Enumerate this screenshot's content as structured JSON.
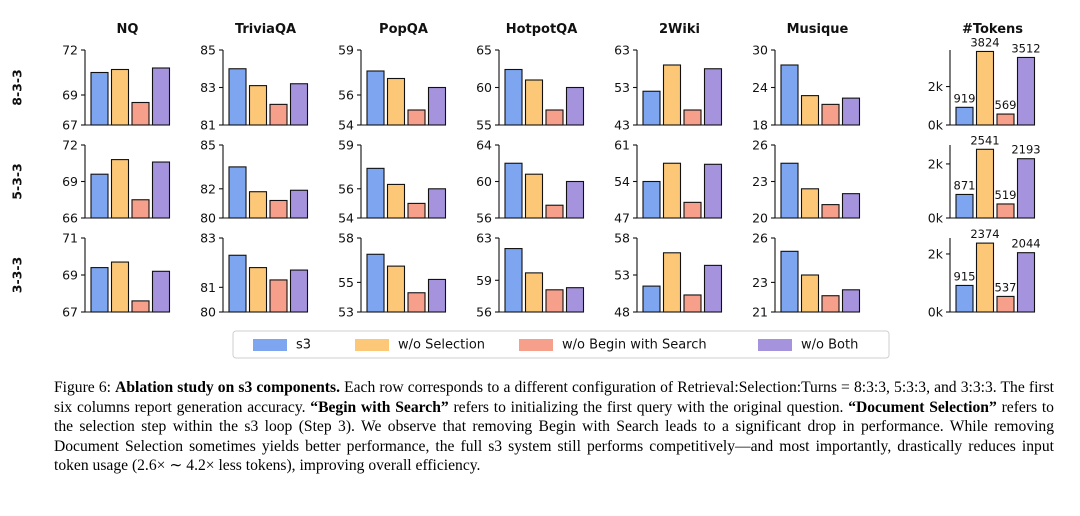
{
  "figure": {
    "columns": [
      "NQ",
      "TriviaQA",
      "PopQA",
      "HotpotQA",
      "2Wiki",
      "Musique",
      "#Tokens"
    ],
    "rows": [
      "8-3-3",
      "5-3-3",
      "3-3-3"
    ]
  },
  "legend": [
    {
      "label": "s3",
      "color": "#7ea6f0"
    },
    {
      "label": "w/o Selection",
      "color": "#fcc878"
    },
    {
      "label": "w/o Begin with Search",
      "color": "#f6a08b"
    },
    {
      "label": "w/o Both",
      "color": "#a693dd"
    }
  ],
  "chart_data": [
    {
      "type": "bar",
      "row": "8-3-3",
      "title": "NQ",
      "ylim": [
        67,
        72
      ],
      "yticks": [
        67,
        69,
        72
      ],
      "values": [
        70.5,
        70.7,
        68.5,
        70.8
      ]
    },
    {
      "type": "bar",
      "row": "8-3-3",
      "title": "TriviaQA",
      "ylim": [
        81,
        85
      ],
      "yticks": [
        81,
        83,
        85
      ],
      "values": [
        84.0,
        83.1,
        82.1,
        83.2
      ]
    },
    {
      "type": "bar",
      "row": "8-3-3",
      "title": "PopQA",
      "ylim": [
        54,
        59
      ],
      "yticks": [
        54,
        56,
        59
      ],
      "values": [
        57.6,
        57.1,
        55.0,
        56.5
      ]
    },
    {
      "type": "bar",
      "row": "8-3-3",
      "title": "HotpotQA",
      "ylim": [
        55,
        65
      ],
      "yticks": [
        55,
        60,
        65
      ],
      "values": [
        62.4,
        61.0,
        57.0,
        60.0
      ]
    },
    {
      "type": "bar",
      "row": "8-3-3",
      "title": "2Wiki",
      "ylim": [
        43,
        63
      ],
      "yticks": [
        43,
        53,
        63
      ],
      "values": [
        52.0,
        59.0,
        47.0,
        58.0
      ]
    },
    {
      "type": "bar",
      "row": "8-3-3",
      "title": "Musique",
      "ylim": [
        18,
        30
      ],
      "yticks": [
        18,
        24,
        30
      ],
      "values": [
        27.6,
        22.7,
        21.3,
        22.3
      ]
    },
    {
      "type": "bar",
      "row": "8-3-3",
      "title": "#Tokens",
      "ylim": [
        0,
        3900
      ],
      "yticks": [
        0,
        2000
      ],
      "ytick_labels": [
        "0k",
        "2k"
      ],
      "values": [
        919,
        3824,
        569,
        3512
      ],
      "data_labels": [
        "919",
        "3824",
        "569",
        "3512"
      ]
    },
    {
      "type": "bar",
      "row": "5-3-3",
      "title": "NQ",
      "ylim": [
        66,
        72
      ],
      "yticks": [
        66,
        69,
        72
      ],
      "values": [
        69.6,
        70.8,
        67.5,
        70.6
      ]
    },
    {
      "type": "bar",
      "row": "5-3-3",
      "title": "TriviaQA",
      "ylim": [
        80,
        85
      ],
      "yticks": [
        80,
        82,
        85
      ],
      "values": [
        83.5,
        81.8,
        81.2,
        81.9
      ]
    },
    {
      "type": "bar",
      "row": "5-3-3",
      "title": "PopQA",
      "ylim": [
        54,
        59
      ],
      "yticks": [
        54,
        56,
        59
      ],
      "values": [
        57.4,
        56.3,
        55.0,
        56.0
      ]
    },
    {
      "type": "bar",
      "row": "5-3-3",
      "title": "HotpotQA",
      "ylim": [
        56,
        64
      ],
      "yticks": [
        56,
        60,
        64
      ],
      "values": [
        62.0,
        60.8,
        57.4,
        60.0
      ]
    },
    {
      "type": "bar",
      "row": "5-3-3",
      "title": "2Wiki",
      "ylim": [
        47,
        61
      ],
      "yticks": [
        47,
        54,
        61
      ],
      "values": [
        54.0,
        57.5,
        50.0,
        57.3
      ]
    },
    {
      "type": "bar",
      "row": "5-3-3",
      "title": "Musique",
      "ylim": [
        20,
        26
      ],
      "yticks": [
        20,
        23,
        26
      ],
      "values": [
        24.5,
        22.4,
        21.1,
        22.0
      ]
    },
    {
      "type": "bar",
      "row": "5-3-3",
      "title": "#Tokens",
      "ylim": [
        0,
        2700
      ],
      "yticks": [
        0,
        2000
      ],
      "ytick_labels": [
        "0k",
        "2k"
      ],
      "values": [
        871,
        2541,
        519,
        2193
      ],
      "data_labels": [
        "871",
        "2541",
        "519",
        "2193"
      ]
    },
    {
      "type": "bar",
      "row": "3-3-3",
      "title": "NQ",
      "ylim": [
        67,
        71
      ],
      "yticks": [
        67,
        69,
        71
      ],
      "values": [
        69.4,
        69.7,
        67.6,
        69.2
      ]
    },
    {
      "type": "bar",
      "row": "3-3-3",
      "title": "TriviaQA",
      "ylim": [
        80,
        83
      ],
      "yticks": [
        80,
        81,
        83
      ],
      "values": [
        82.3,
        81.8,
        81.3,
        81.7
      ]
    },
    {
      "type": "bar",
      "row": "3-3-3",
      "title": "PopQA",
      "ylim": [
        53,
        58
      ],
      "yticks": [
        53,
        55,
        58
      ],
      "values": [
        56.9,
        56.1,
        54.3,
        55.2
      ]
    },
    {
      "type": "bar",
      "row": "3-3-3",
      "title": "HotpotQA",
      "ylim": [
        56,
        63
      ],
      "yticks": [
        56,
        59,
        63
      ],
      "values": [
        62.0,
        59.7,
        58.1,
        58.3
      ]
    },
    {
      "type": "bar",
      "row": "3-3-3",
      "title": "2Wiki",
      "ylim": [
        48,
        58
      ],
      "yticks": [
        48,
        53,
        58
      ],
      "values": [
        51.5,
        56.0,
        50.3,
        54.3
      ]
    },
    {
      "type": "bar",
      "row": "3-3-3",
      "title": "Musique",
      "ylim": [
        21,
        26
      ],
      "yticks": [
        21,
        23,
        26
      ],
      "values": [
        25.1,
        23.5,
        22.1,
        22.5
      ]
    },
    {
      "type": "bar",
      "row": "3-3-3",
      "title": "#Tokens",
      "ylim": [
        0,
        2550
      ],
      "yticks": [
        0,
        2000
      ],
      "ytick_labels": [
        "0k",
        "2k"
      ],
      "values": [
        915,
        2374,
        537,
        2044
      ],
      "data_labels": [
        "915",
        "2374",
        "537",
        "2044"
      ]
    }
  ],
  "caption": {
    "label": "Figure 6:",
    "title": "Ablation study on s3 components.",
    "s1": "Each row corresponds to a different configuration of Retrieval:Selection:Turns = 8:3:3, 5:3:3, and 3:3:3. The first six columns report generation accuracy.",
    "term1": "“Begin with Search”",
    "s2": "refers to initializing the first query with the original question.",
    "term2": "“Document Selection”",
    "s3": "refers to the selection step within the s3 loop (Step 3). We observe that removing Begin with Search leads to a significant drop in performance. While removing Document Selection sometimes yields better performance, the full s3 system still performs competitively—and most importantly, drastically reduces input token usage (2.6× ∼ 4.2× less tokens), improving overall efficiency."
  }
}
